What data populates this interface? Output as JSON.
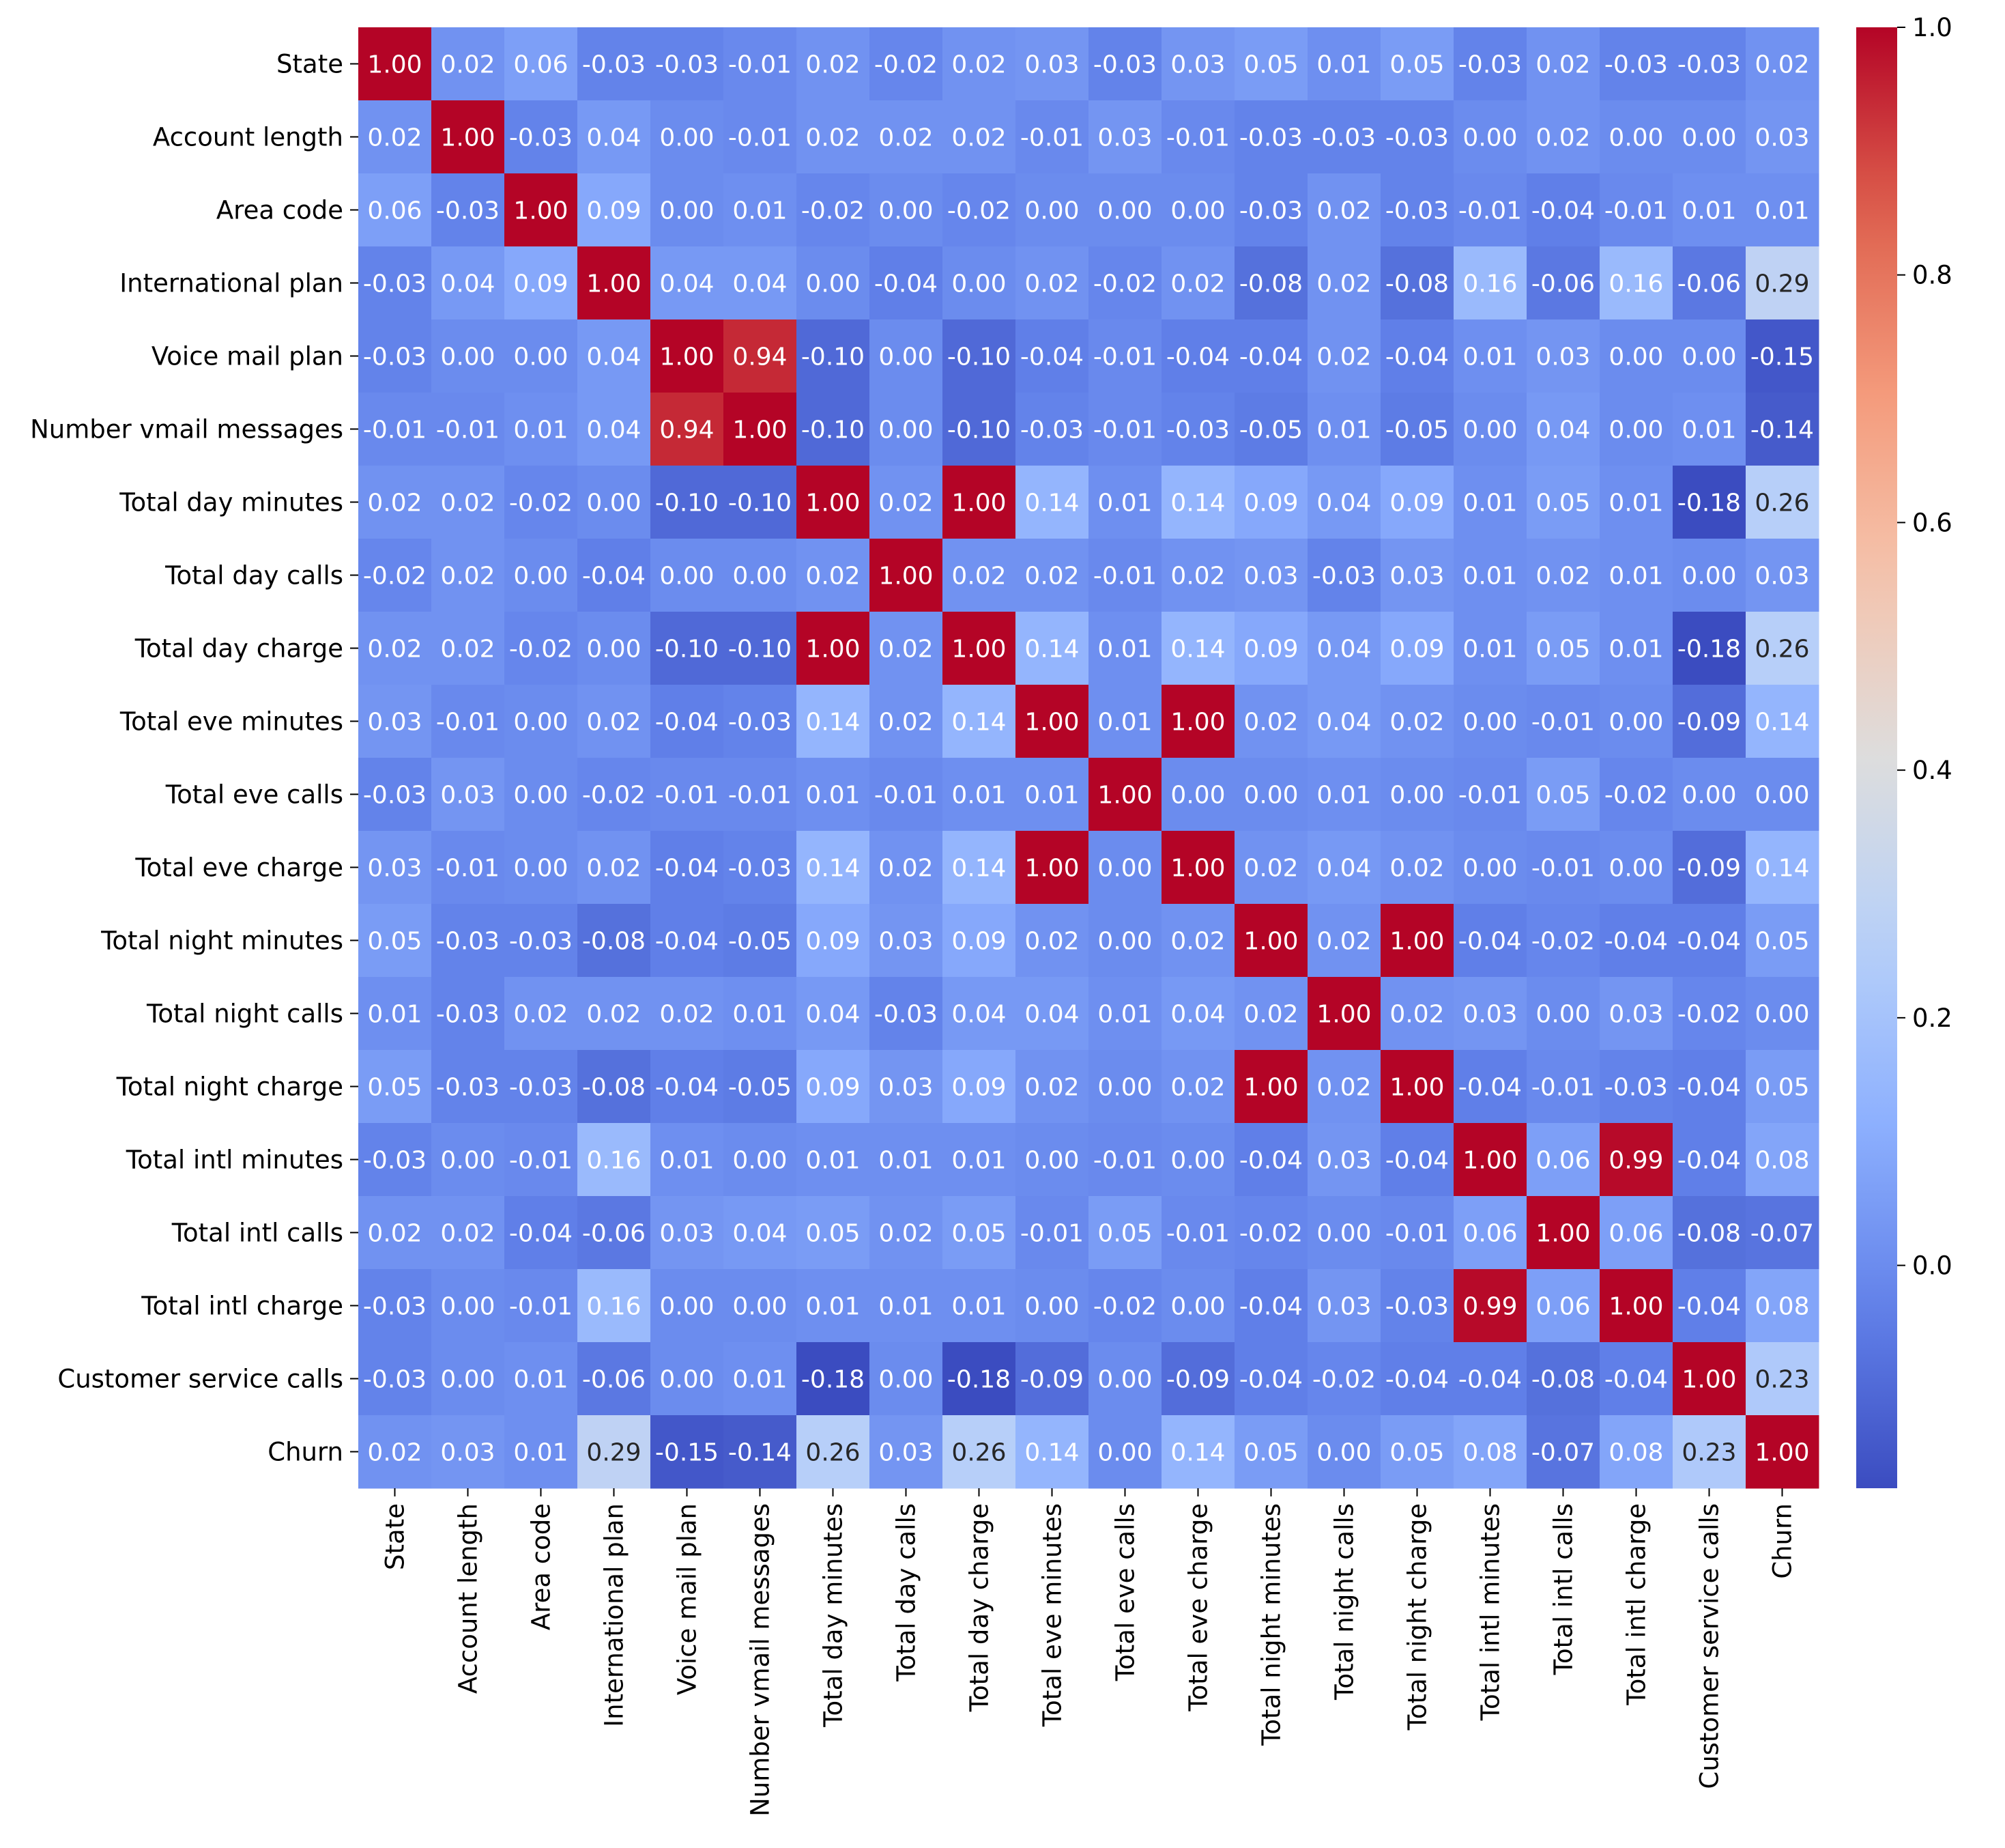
{
  "chart_data": {
    "type": "heatmap",
    "title": "",
    "xlabel": "",
    "ylabel": "",
    "labels": [
      "State",
      "Account length",
      "Area code",
      "International plan",
      "Voice mail plan",
      "Number vmail messages",
      "Total day minutes",
      "Total day calls",
      "Total day charge",
      "Total eve minutes",
      "Total eve calls",
      "Total eve charge",
      "Total night minutes",
      "Total night calls",
      "Total night charge",
      "Total intl minutes",
      "Total intl calls",
      "Total intl charge",
      "Customer service calls",
      "Churn"
    ],
    "matrix": [
      [
        1.0,
        0.02,
        0.06,
        -0.03,
        -0.03,
        -0.01,
        0.02,
        -0.02,
        0.02,
        0.03,
        -0.03,
        0.03,
        0.05,
        0.01,
        0.05,
        -0.03,
        0.02,
        -0.03,
        -0.03,
        0.02
      ],
      [
        0.02,
        1.0,
        -0.03,
        0.04,
        0.0,
        -0.01,
        0.02,
        0.02,
        0.02,
        -0.01,
        0.03,
        -0.01,
        -0.03,
        -0.03,
        -0.03,
        -0.0,
        0.02,
        -0.0,
        -0.0,
        0.03
      ],
      [
        0.06,
        -0.03,
        1.0,
        0.09,
        0.0,
        0.01,
        -0.02,
        -0.0,
        -0.02,
        -0.0,
        -0.0,
        -0.0,
        -0.03,
        0.02,
        -0.03,
        -0.01,
        -0.04,
        -0.01,
        0.01,
        0.01
      ],
      [
        -0.03,
        0.04,
        0.09,
        1.0,
        0.04,
        0.04,
        0.0,
        -0.04,
        0.0,
        0.02,
        -0.02,
        0.02,
        -0.08,
        0.02,
        -0.08,
        0.16,
        -0.06,
        0.16,
        -0.06,
        0.29
      ],
      [
        -0.03,
        0.0,
        0.0,
        0.04,
        1.0,
        0.94,
        -0.1,
        0.0,
        -0.1,
        -0.04,
        -0.01,
        -0.04,
        -0.04,
        0.02,
        -0.04,
        0.01,
        0.03,
        0.0,
        -0.0,
        -0.15
      ],
      [
        -0.01,
        -0.01,
        0.01,
        0.04,
        0.94,
        1.0,
        -0.1,
        0.0,
        -0.1,
        -0.03,
        -0.01,
        -0.03,
        -0.05,
        0.01,
        -0.05,
        0.0,
        0.04,
        0.0,
        0.01,
        -0.14
      ],
      [
        0.02,
        0.02,
        -0.02,
        0.0,
        -0.1,
        -0.1,
        1.0,
        0.02,
        1.0,
        0.14,
        0.01,
        0.14,
        0.09,
        0.04,
        0.09,
        0.01,
        0.05,
        0.01,
        -0.18,
        0.26
      ],
      [
        -0.02,
        0.02,
        -0.0,
        -0.04,
        0.0,
        0.0,
        0.02,
        1.0,
        0.02,
        0.02,
        -0.01,
        0.02,
        0.03,
        -0.03,
        0.03,
        0.01,
        0.02,
        0.01,
        0.0,
        0.03
      ],
      [
        0.02,
        0.02,
        -0.02,
        0.0,
        -0.1,
        -0.1,
        1.0,
        0.02,
        1.0,
        0.14,
        0.01,
        0.14,
        0.09,
        0.04,
        0.09,
        0.01,
        0.05,
        0.01,
        -0.18,
        0.26
      ],
      [
        0.03,
        -0.01,
        -0.0,
        0.02,
        -0.04,
        -0.03,
        0.14,
        0.02,
        0.14,
        1.0,
        0.01,
        1.0,
        0.02,
        0.04,
        0.02,
        -0.0,
        -0.01,
        -0.0,
        -0.09,
        0.14
      ],
      [
        -0.03,
        0.03,
        -0.0,
        -0.02,
        -0.01,
        -0.01,
        0.01,
        -0.01,
        0.01,
        0.01,
        1.0,
        0.0,
        0.0,
        0.01,
        0.0,
        -0.01,
        0.05,
        -0.02,
        -0.0,
        0.0
      ],
      [
        0.03,
        -0.01,
        -0.0,
        0.02,
        -0.04,
        -0.03,
        0.14,
        0.02,
        0.14,
        1.0,
        0.0,
        1.0,
        0.02,
        0.04,
        0.02,
        -0.0,
        -0.01,
        -0.0,
        -0.09,
        0.14
      ],
      [
        0.05,
        -0.03,
        -0.03,
        -0.08,
        -0.04,
        -0.05,
        0.09,
        0.03,
        0.09,
        0.02,
        0.0,
        0.02,
        1.0,
        0.02,
        1.0,
        -0.04,
        -0.02,
        -0.04,
        -0.04,
        0.05
      ],
      [
        0.01,
        -0.03,
        0.02,
        0.02,
        0.02,
        0.01,
        0.04,
        -0.03,
        0.04,
        0.04,
        0.01,
        0.04,
        0.02,
        1.0,
        0.02,
        0.03,
        0.0,
        0.03,
        -0.02,
        -0.0
      ],
      [
        0.05,
        -0.03,
        -0.03,
        -0.08,
        -0.04,
        -0.05,
        0.09,
        0.03,
        0.09,
        0.02,
        0.0,
        0.02,
        1.0,
        0.02,
        1.0,
        -0.04,
        -0.01,
        -0.03,
        -0.04,
        0.05
      ],
      [
        -0.03,
        -0.0,
        -0.01,
        0.16,
        0.01,
        0.0,
        0.01,
        0.01,
        0.01,
        -0.0,
        -0.01,
        -0.0,
        -0.04,
        0.03,
        -0.04,
        1.0,
        0.06,
        0.99,
        -0.04,
        0.08
      ],
      [
        0.02,
        0.02,
        -0.04,
        -0.06,
        0.03,
        0.04,
        0.05,
        0.02,
        0.05,
        -0.01,
        0.05,
        -0.01,
        -0.02,
        0.0,
        -0.01,
        0.06,
        1.0,
        0.06,
        -0.08,
        -0.07
      ],
      [
        -0.03,
        -0.0,
        -0.01,
        0.16,
        0.0,
        0.0,
        0.01,
        0.01,
        0.01,
        -0.0,
        -0.02,
        -0.0,
        -0.04,
        0.03,
        -0.03,
        0.99,
        0.06,
        1.0,
        -0.04,
        0.08
      ],
      [
        -0.03,
        -0.0,
        0.01,
        -0.06,
        -0.0,
        0.01,
        -0.18,
        0.0,
        -0.18,
        -0.09,
        -0.0,
        -0.09,
        -0.04,
        -0.02,
        -0.04,
        -0.04,
        -0.08,
        -0.04,
        1.0,
        0.23
      ],
      [
        0.02,
        0.03,
        0.01,
        0.29,
        -0.15,
        -0.14,
        0.26,
        0.03,
        0.26,
        0.14,
        0.0,
        0.14,
        0.05,
        -0.0,
        0.05,
        0.08,
        -0.07,
        0.08,
        0.23,
        1.0
      ]
    ],
    "value_format": "0.00",
    "colormap": "coolwarm",
    "vmin": -0.18,
    "vmax": 1.0,
    "colorbar_ticks": [
      "0.0",
      "0.2",
      "0.4",
      "0.6",
      "0.8",
      "1.0"
    ],
    "colorbar_tick_values": [
      0.0,
      0.2,
      0.4,
      0.6,
      0.8,
      1.0
    ],
    "grid": false,
    "legend": "colorbar-right"
  }
}
